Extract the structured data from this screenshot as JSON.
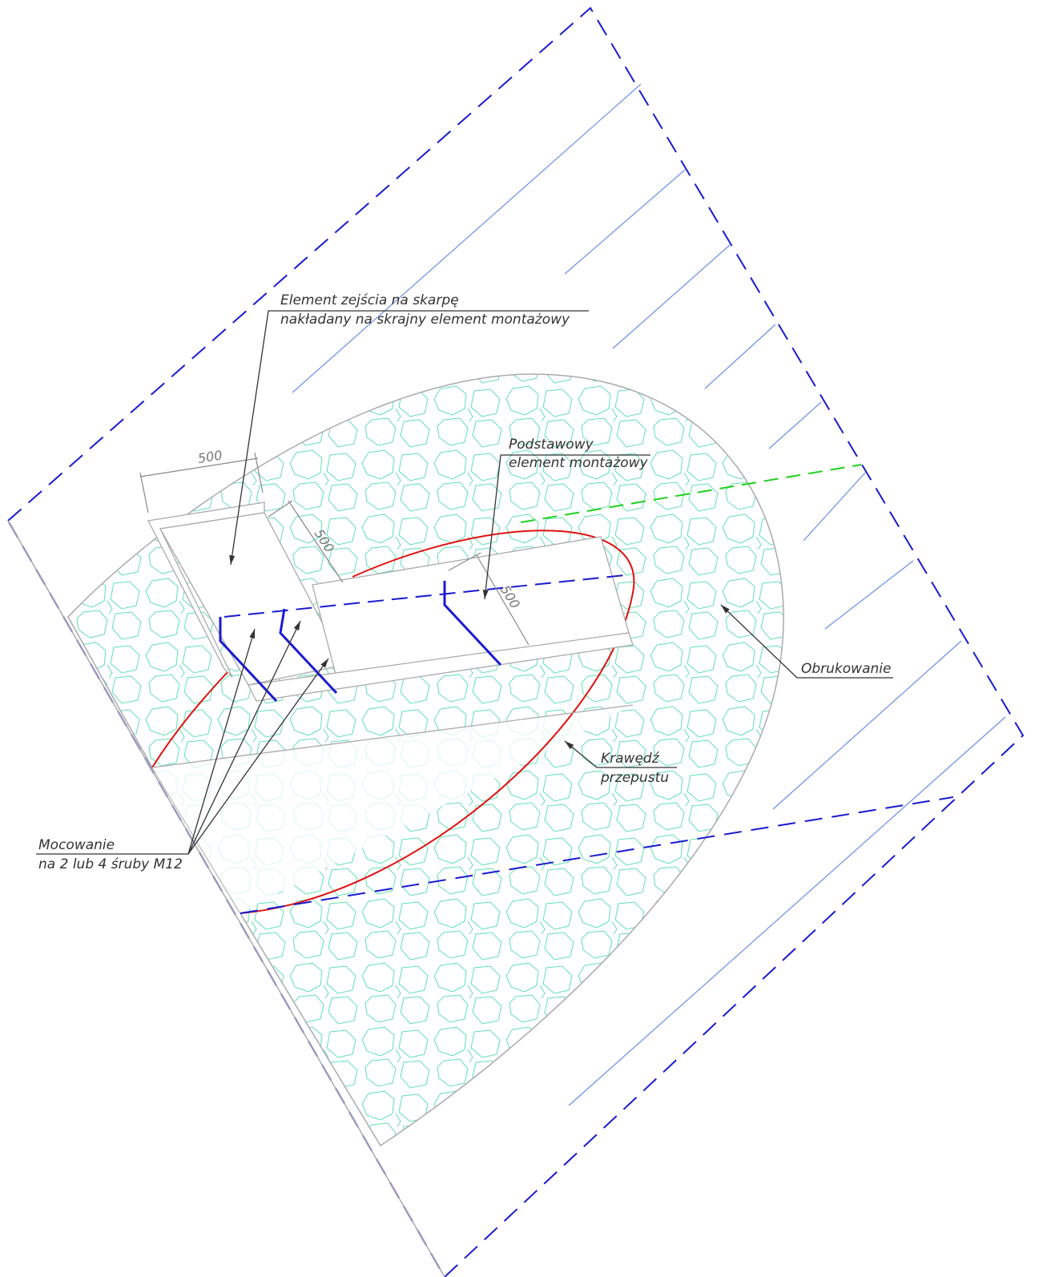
{
  "labels": {
    "descent_element": [
      "Element zejścia na skarpę",
      "nakładany na skrajny element montażowy"
    ],
    "basic_element": [
      "Podstawowy",
      "element montażowy"
    ],
    "paving": "Obrukowanie",
    "culvert_edge": [
      "Krawędź",
      "przepustu"
    ],
    "fixing": [
      "Mocowanie",
      "na 2 lub 4 śruby M12"
    ]
  },
  "dimensions": [
    500,
    500,
    500
  ]
}
